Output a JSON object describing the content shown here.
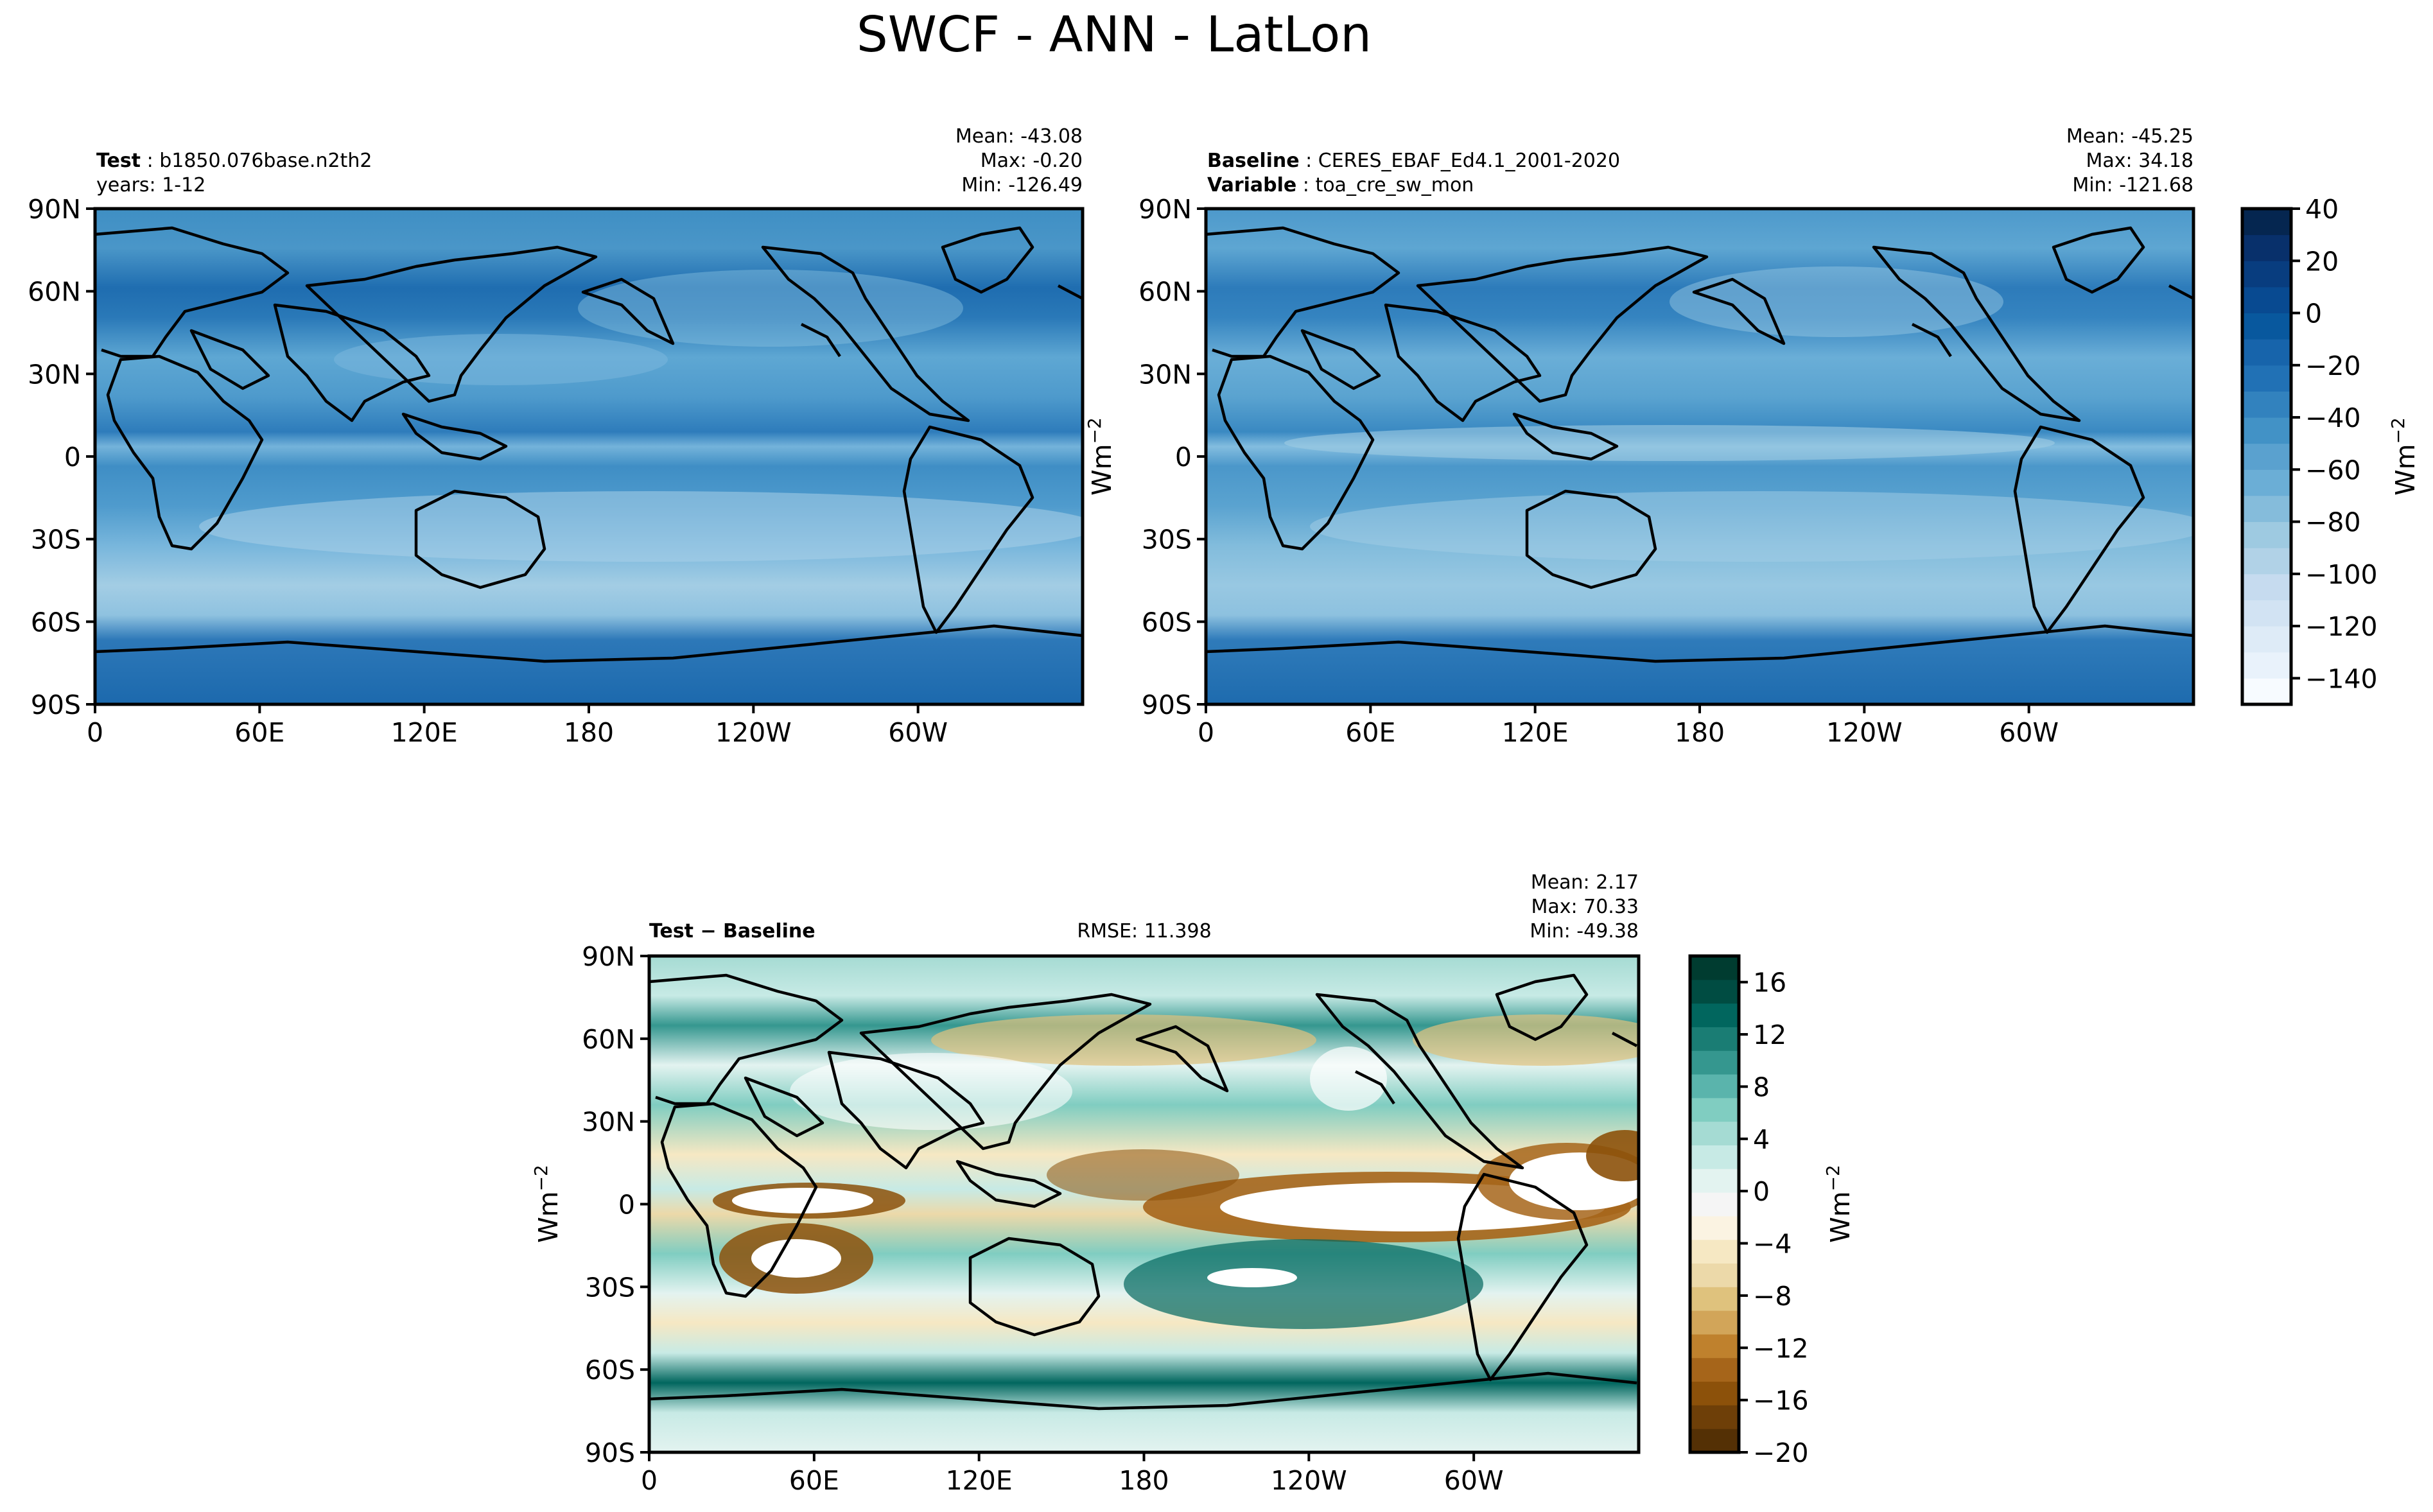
{
  "figure_title": "SWCF - ANN - LatLon",
  "panels": {
    "test": {
      "label_bold": "Test",
      "label_text": "b1850.076base.n2th2",
      "line2": "years: 1-12",
      "mean": "Mean: -43.08",
      "max": "Max: -0.20",
      "min": "Min: -126.49"
    },
    "baseline": {
      "label_bold": "Baseline",
      "label_text": "CERES_EBAF_Ed4.1_2001-2020",
      "line2_bold": "Variable",
      "line2_text": "toa_cre_sw_mon",
      "mean": "Mean: -45.25",
      "max": "Max: 34.18",
      "min": "Min: -121.68"
    },
    "diff": {
      "label": "Test − Baseline",
      "rmse": "RMSE: 11.398",
      "mean": "Mean:  2.17",
      "max": "Max: 70.33",
      "min": "Min: -49.38"
    }
  },
  "unit_label": "Wm",
  "unit_exp": "−2",
  "lat_ticks": [
    "90N",
    "60N",
    "30N",
    "0",
    "30S",
    "60S",
    "90S"
  ],
  "lon_ticks": [
    "0",
    "60E",
    "120E",
    "180",
    "120W",
    "60W"
  ],
  "main_colorbar": {
    "ticks": [
      "40",
      "20",
      "0",
      "−20",
      "−40",
      "−60",
      "−80",
      "−100",
      "−120",
      "−140"
    ],
    "levels": [
      -150,
      -140,
      -130,
      -120,
      -110,
      -100,
      -90,
      -80,
      -70,
      -60,
      -50,
      -40,
      -30,
      -20,
      -10,
      0,
      10,
      20,
      30,
      40
    ],
    "colors": [
      "#f7fbff",
      "#e9f2fb",
      "#deebf7",
      "#d2e3f3",
      "#c6dbef",
      "#b1d2e7",
      "#9ecae1",
      "#85bcdb",
      "#6baed6",
      "#5aa1cf",
      "#4292c6",
      "#3282be",
      "#2171b5",
      "#1764ab",
      "#08589e",
      "#084a91",
      "#083d7f",
      "#08306b",
      "#052650"
    ]
  },
  "diff_colorbar": {
    "ticks": [
      "16",
      "12",
      "8",
      "4",
      "0",
      "−4",
      "−8",
      "−12",
      "−16",
      "−20"
    ],
    "colors": [
      "#543005",
      "#6e3f08",
      "#8c510a",
      "#a6651a",
      "#bf812d",
      "#d2a559",
      "#dfc27d",
      "#ecd9a9",
      "#f6e8c3",
      "#fbf3e2",
      "#f5f5f5",
      "#e3f3f0",
      "#c7eae5",
      "#a5dbd3",
      "#80cdc1",
      "#5ab4ac",
      "#35978f",
      "#1a7d74",
      "#01665e",
      "#004c42",
      "#003c30"
    ]
  },
  "chart_data": [
    {
      "type": "heatmap",
      "title": "Test: b1850.076base.n2th2 (years: 1-12)",
      "variable": "SWCF",
      "units": "Wm-2",
      "xlabel": "",
      "ylabel": "",
      "x_ticks": [
        "0",
        "60E",
        "120E",
        "180",
        "120W",
        "60W"
      ],
      "y_ticks": [
        "90N",
        "60N",
        "30N",
        "0",
        "30S",
        "60S",
        "90S"
      ],
      "xlim": [
        0,
        360
      ],
      "ylim": [
        -90,
        90
      ],
      "stats": {
        "mean": -43.08,
        "max": -0.2,
        "min": -126.49
      },
      "colorbar_range": [
        -150,
        40
      ],
      "zonal_profile": [
        {
          "lat": 80,
          "value": -30
        },
        {
          "lat": 60,
          "value": -65
        },
        {
          "lat": 50,
          "value": -70
        },
        {
          "lat": 35,
          "value": -45
        },
        {
          "lat": 20,
          "value": -35
        },
        {
          "lat": 10,
          "value": -55
        },
        {
          "lat": 5,
          "value": -65
        },
        {
          "lat": 0,
          "value": -45
        },
        {
          "lat": -15,
          "value": -40
        },
        {
          "lat": -30,
          "value": -50
        },
        {
          "lat": -45,
          "value": -85
        },
        {
          "lat": -55,
          "value": -95
        },
        {
          "lat": -65,
          "value": -75
        },
        {
          "lat": -80,
          "value": -25
        }
      ]
    },
    {
      "type": "heatmap",
      "title": "Baseline: CERES_EBAF_Ed4.1_2001-2020 (Variable: toa_cre_sw_mon)",
      "variable": "SWCF",
      "units": "Wm-2",
      "x_ticks": [
        "0",
        "60E",
        "120E",
        "180",
        "120W",
        "60W"
      ],
      "y_ticks": [
        "90N",
        "60N",
        "30N",
        "0",
        "30S",
        "60S",
        "90S"
      ],
      "xlim": [
        0,
        360
      ],
      "ylim": [
        -90,
        90
      ],
      "stats": {
        "mean": -45.25,
        "max": 34.18,
        "min": -121.68
      },
      "colorbar_range": [
        -150,
        40
      ],
      "zonal_profile": [
        {
          "lat": 80,
          "value": -25
        },
        {
          "lat": 60,
          "value": -55
        },
        {
          "lat": 50,
          "value": -65
        },
        {
          "lat": 35,
          "value": -40
        },
        {
          "lat": 20,
          "value": -30
        },
        {
          "lat": 10,
          "value": -45
        },
        {
          "lat": 5,
          "value": -60
        },
        {
          "lat": 0,
          "value": -40
        },
        {
          "lat": -15,
          "value": -35
        },
        {
          "lat": -30,
          "value": -45
        },
        {
          "lat": -45,
          "value": -75
        },
        {
          "lat": -55,
          "value": -80
        },
        {
          "lat": -65,
          "value": -65
        },
        {
          "lat": -80,
          "value": -20
        }
      ]
    },
    {
      "type": "heatmap",
      "title": "Test − Baseline",
      "variable": "SWCF",
      "units": "Wm-2",
      "x_ticks": [
        "0",
        "60E",
        "120E",
        "180",
        "120W",
        "60W"
      ],
      "y_ticks": [
        "90N",
        "60N",
        "30N",
        "0",
        "30S",
        "60S",
        "90S"
      ],
      "xlim": [
        0,
        360
      ],
      "ylim": [
        -90,
        90
      ],
      "stats": {
        "mean": 2.17,
        "max": 70.33,
        "min": -49.38,
        "rmse": 11.398
      },
      "colorbar_range": [
        -20,
        18
      ]
    }
  ]
}
